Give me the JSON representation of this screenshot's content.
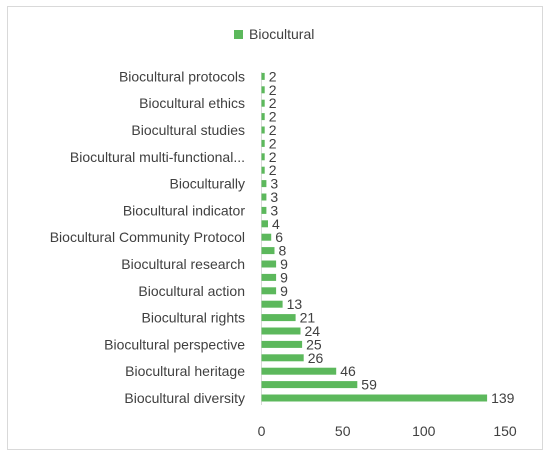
{
  "chart_data": {
    "type": "bar",
    "orientation": "horizontal",
    "series": [
      {
        "name": "Biocultural",
        "color": "#5cb85c",
        "values": [
          139,
          59,
          46,
          26,
          25,
          24,
          21,
          13,
          9,
          9,
          9,
          8,
          6,
          4,
          3,
          3,
          3,
          2,
          2,
          2,
          2,
          2,
          2,
          2,
          2
        ]
      }
    ],
    "categories": [
      "Biocultural diversity",
      "",
      "Biocultural heritage",
      "",
      "Biocultural perspective",
      "",
      "Biocultural rights",
      "",
      "Biocultural action",
      "",
      "Biocultural research",
      "",
      "Biocultural Community Protocol",
      "",
      "Biocultural indicator",
      "",
      "Bioculturally",
      "",
      "Biocultural multi-functional...",
      "",
      "Biocultural studies",
      "",
      "Biocultural ethics",
      "",
      "Biocultural protocols"
    ],
    "xlim": [
      0,
      150
    ],
    "xticks": [
      0,
      50,
      100,
      150
    ],
    "legend_position": "top",
    "grid": false
  }
}
